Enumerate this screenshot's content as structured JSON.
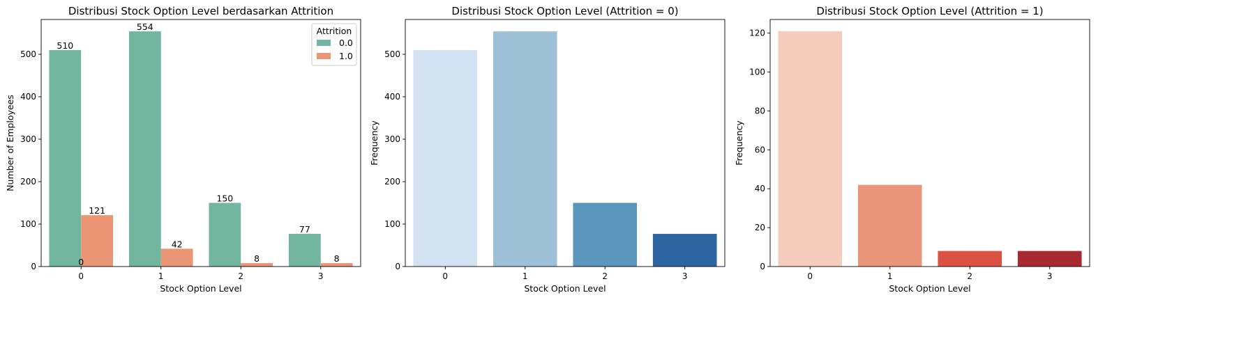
{
  "chart_data": [
    {
      "type": "bar",
      "title": "Distribusi Stock Option Level berdasarkan Attrition",
      "xlabel": "Stock Option Level",
      "ylabel": "Number of Employees",
      "categories": [
        "0",
        "1",
        "2",
        "3"
      ],
      "ylim": [
        0,
        582
      ],
      "yticks": [
        0,
        100,
        200,
        300,
        400,
        500
      ],
      "series": [
        {
          "name": "0.0",
          "color": "#73b6a0",
          "values": [
            510,
            554,
            150,
            77
          ]
        },
        {
          "name": "1.0",
          "color": "#ea9674",
          "values": [
            121,
            42,
            8,
            8
          ]
        }
      ],
      "data_labels": [
        {
          "text": "510",
          "value": 510,
          "category": 0,
          "series": 0
        },
        {
          "text": "554",
          "value": 554,
          "category": 1,
          "series": 0
        },
        {
          "text": "150",
          "value": 150,
          "category": 2,
          "series": 0
        },
        {
          "text": "77",
          "value": 77,
          "category": 3,
          "series": 0
        },
        {
          "text": "121",
          "value": 121,
          "category": 0,
          "series": 1
        },
        {
          "text": "42",
          "value": 42,
          "category": 1,
          "series": 1
        },
        {
          "text": "8",
          "value": 8,
          "category": 2,
          "series": 1
        },
        {
          "text": "8",
          "value": 8,
          "category": 3,
          "series": 1
        },
        {
          "text": "0",
          "value": 0,
          "category": 0,
          "series": 0.5
        }
      ],
      "legend": {
        "title": "Attrition",
        "position": "top-right"
      },
      "grid": false
    },
    {
      "type": "bar",
      "title": "Distribusi Stock Option Level (Attrition = 0)",
      "xlabel": "Stock Option Level",
      "ylabel": "Frequency",
      "categories": [
        "0",
        "1",
        "2",
        "3"
      ],
      "values": [
        510,
        554,
        150,
        77
      ],
      "colors": [
        "#d3e2f0",
        "#9fc1d7",
        "#5b97bd",
        "#2c65a0"
      ],
      "ylim": [
        0,
        582
      ],
      "yticks": [
        0,
        100,
        200,
        300,
        400,
        500
      ],
      "grid": false
    },
    {
      "type": "bar",
      "title": "Distribusi Stock Option Level (Attrition = 1)",
      "xlabel": "Stock Option Level",
      "ylabel": "Frequency",
      "categories": [
        "0",
        "1",
        "2",
        "3"
      ],
      "values": [
        121,
        42,
        8,
        8
      ],
      "colors": [
        "#f4cdbd",
        "#ea967a",
        "#dc5242",
        "#a8292f"
      ],
      "ylim": [
        0,
        127
      ],
      "yticks": [
        0,
        20,
        40,
        60,
        80,
        100,
        120
      ],
      "grid": false
    }
  ]
}
